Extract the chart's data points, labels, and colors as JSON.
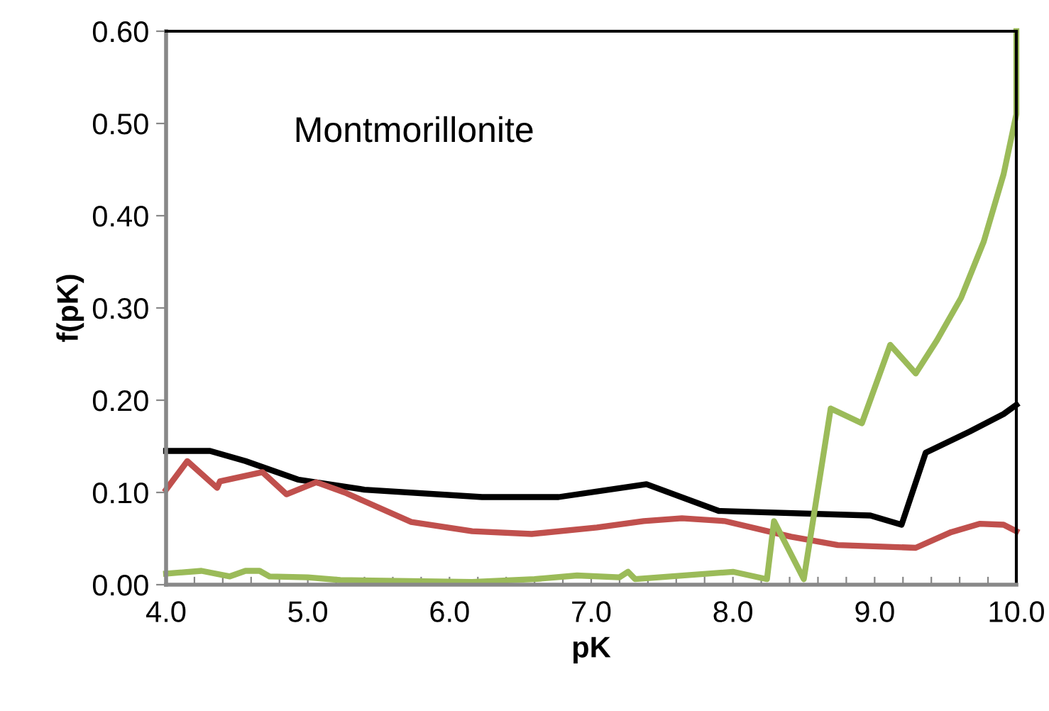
{
  "chart_data": {
    "type": "line",
    "xlabel": "pK",
    "ylabel": "f(pK)",
    "annotations": [
      "Montmorillonite"
    ],
    "xlim": [
      4.0,
      10.0
    ],
    "ylim": [
      0.0,
      0.6
    ],
    "xticks": [
      {
        "value": 4,
        "label": "4.0"
      },
      {
        "value": 4.2,
        "label": null
      },
      {
        "value": 4.4,
        "label": null
      },
      {
        "value": 4.6,
        "label": null
      },
      {
        "value": 4.8,
        "label": null
      },
      {
        "value": 5,
        "label": "5.0"
      },
      {
        "value": 5.2,
        "label": null
      },
      {
        "value": 5.4,
        "label": null
      },
      {
        "value": 5.6,
        "label": null
      },
      {
        "value": 5.8,
        "label": null
      },
      {
        "value": 6,
        "label": "6.0"
      },
      {
        "value": 6.2,
        "label": null
      },
      {
        "value": 6.4,
        "label": null
      },
      {
        "value": 6.6,
        "label": null
      },
      {
        "value": 6.8,
        "label": null
      },
      {
        "value": 7,
        "label": "7.0"
      },
      {
        "value": 7.2,
        "label": null
      },
      {
        "value": 7.4,
        "label": null
      },
      {
        "value": 7.6,
        "label": null
      },
      {
        "value": 7.8,
        "label": null
      },
      {
        "value": 8,
        "label": "8.0"
      },
      {
        "value": 8.2,
        "label": null
      },
      {
        "value": 8.4,
        "label": null
      },
      {
        "value": 8.6,
        "label": null
      },
      {
        "value": 8.8,
        "label": null
      },
      {
        "value": 9,
        "label": "9.0"
      },
      {
        "value": 9.2,
        "label": null
      },
      {
        "value": 9.4,
        "label": null
      },
      {
        "value": 9.6,
        "label": null
      },
      {
        "value": 9.8,
        "label": null
      },
      {
        "value": 10,
        "label": "10.0"
      }
    ],
    "yticks": [
      {
        "value": 0,
        "label": "0.00"
      },
      {
        "value": 0.1,
        "label": "0.10"
      },
      {
        "value": 0.2,
        "label": "0.20"
      },
      {
        "value": 0.3,
        "label": "0.30"
      },
      {
        "value": 0.4,
        "label": "0.40"
      },
      {
        "value": 0.5,
        "label": "0.50"
      },
      {
        "value": 0.6,
        "label": "0.60"
      }
    ],
    "grid": false,
    "marker": "none",
    "line_style": "solid",
    "series": [
      {
        "color": "#000000",
        "x": [
          4.0,
          4.31,
          4.56,
          4.93,
          5.4,
          6.23,
          6.77,
          7.39,
          7.9,
          8.97,
          9.19,
          9.36,
          9.67,
          9.91,
          10.0
        ],
        "values": [
          0.145,
          0.145,
          0.134,
          0.114,
          0.103,
          0.095,
          0.095,
          0.109,
          0.08,
          0.075,
          0.065,
          0.143,
          0.166,
          0.185,
          0.195
        ]
      },
      {
        "color": "#c0504d",
        "x": [
          4.0,
          4.15,
          4.36,
          4.38,
          4.68,
          4.85,
          5.06,
          5.26,
          5.73,
          6.16,
          6.58,
          7.04,
          7.37,
          7.64,
          7.94,
          8.41,
          8.74,
          9.29,
          9.54,
          9.74,
          9.91,
          10.0
        ],
        "values": [
          0.103,
          0.134,
          0.105,
          0.112,
          0.122,
          0.098,
          0.111,
          0.1,
          0.068,
          0.058,
          0.055,
          0.062,
          0.069,
          0.072,
          0.069,
          0.052,
          0.043,
          0.04,
          0.057,
          0.066,
          0.065,
          0.058
        ]
      },
      {
        "color": "#9bbb59",
        "x": [
          4.0,
          4.25,
          4.45,
          4.56,
          4.66,
          4.73,
          5.0,
          5.23,
          6.16,
          6.6,
          6.9,
          7.2,
          7.26,
          7.31,
          8.0,
          8.24,
          8.29,
          8.5,
          8.69,
          8.91,
          9.11,
          9.29,
          9.44,
          9.61,
          9.77,
          9.91,
          10.0,
          10.0
        ],
        "values": [
          0.012,
          0.015,
          0.009,
          0.015,
          0.015,
          0.009,
          0.008,
          0.005,
          0.003,
          0.006,
          0.01,
          0.008,
          0.014,
          0.006,
          0.014,
          0.006,
          0.069,
          0.006,
          0.191,
          0.175,
          0.26,
          0.229,
          0.265,
          0.311,
          0.372,
          0.445,
          0.51,
          0.6
        ]
      }
    ]
  }
}
